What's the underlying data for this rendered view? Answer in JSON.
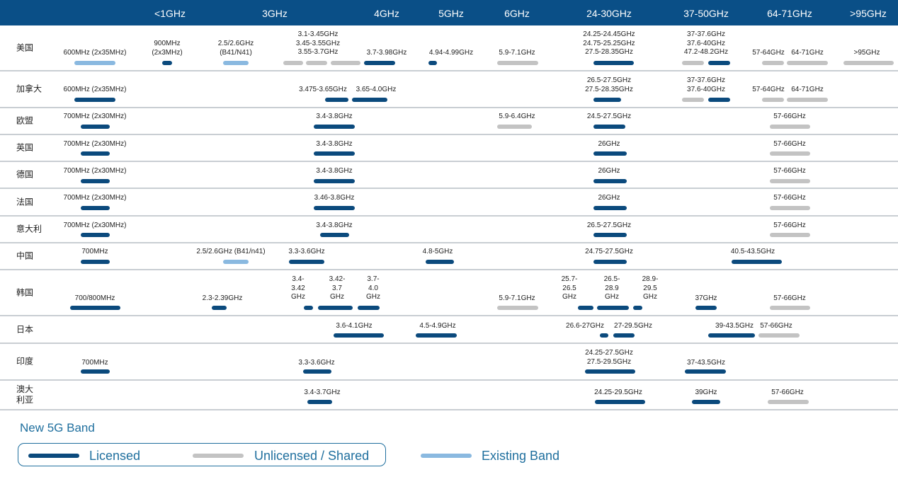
{
  "header": {
    "columns": [
      {
        "id": "lt1ghz",
        "label": "<1GHz"
      },
      {
        "id": "3ghz",
        "label": "3GHz"
      },
      {
        "id": "4ghz",
        "label": "4GHz"
      },
      {
        "id": "5ghz",
        "label": "5GHz"
      },
      {
        "id": "6ghz",
        "label": "6GHz"
      },
      {
        "id": "24-30ghz",
        "label": "24-30GHz"
      },
      {
        "id": "37-50ghz",
        "label": "37-50GHz"
      },
      {
        "id": "64-71ghz",
        "label": "64-71GHz"
      },
      {
        "id": "gt95ghz",
        "label": ">95GHz"
      }
    ]
  },
  "rows": [
    {
      "id": "usa",
      "country": "美国",
      "bands": [
        {
          "label": "600MHz (2x35MHz)",
          "type": "existing"
        },
        {
          "label": "900MHz\n(2x3MHz)",
          "type": "licensed"
        },
        {
          "label": "2.5/2.6GHz\n(B41/N41)",
          "type": "existing"
        },
        {
          "label": "3.1-3.45GHz\n3.45-3.55GHz\n3.55-3.7GHz",
          "type": "shared"
        },
        {
          "label": "3.7-3.98GHz",
          "type": "licensed"
        },
        {
          "label": "4.94-4.99GHz",
          "type": "licensed"
        },
        {
          "label": "5.9-7.1GHz",
          "type": "shared"
        },
        {
          "label": "24.25-24.45GHz\n24.75-25.25GHz\n27.5-28.35GHz",
          "type": "licensed"
        },
        {
          "label": "37-37.6GHz\n37.6-40GHz\n47.2-48.2GHz",
          "type": "mixed"
        },
        {
          "label": "57-64GHz",
          "type": "shared"
        },
        {
          "label": "64-71GHz",
          "type": "shared"
        },
        {
          "label": ">95GHz",
          "type": "shared"
        }
      ]
    },
    {
      "id": "canada",
      "country": "加拿大",
      "bands": [
        {
          "label": "600MHz (2x35MHz)",
          "type": "licensed"
        },
        {
          "label": "3.475-3.65GHz",
          "type": "licensed"
        },
        {
          "label": "3.65-4.0GHz",
          "type": "licensed"
        },
        {
          "label": "26.5-27.5GHz\n27.5-28.35GHz",
          "type": "licensed"
        },
        {
          "label": "37-37.6GHz\n37.6-40GHz",
          "type": "mixed"
        },
        {
          "label": "57-64GHz",
          "type": "shared"
        },
        {
          "label": "64-71GHz",
          "type": "shared"
        }
      ]
    },
    {
      "id": "eu",
      "country": "欧盟",
      "bands": [
        {
          "label": "700MHz (2x30MHz)",
          "type": "licensed"
        },
        {
          "label": "3.4-3.8GHz",
          "type": "licensed"
        },
        {
          "label": "5.9-6.4GHz",
          "type": "shared"
        },
        {
          "label": "24.5-27.5GHz",
          "type": "licensed"
        },
        {
          "label": "57-66GHz",
          "type": "shared"
        }
      ]
    },
    {
      "id": "uk",
      "country": "英国",
      "bands": [
        {
          "label": "700MHz (2x30MHz)",
          "type": "licensed"
        },
        {
          "label": "3.4-3.8GHz",
          "type": "licensed"
        },
        {
          "label": "26GHz",
          "type": "licensed"
        },
        {
          "label": "57-66GHz",
          "type": "shared"
        }
      ]
    },
    {
      "id": "germany",
      "country": "德国",
      "bands": [
        {
          "label": "700MHz (2x30MHz)",
          "type": "licensed"
        },
        {
          "label": "3.4-3.8GHz",
          "type": "licensed"
        },
        {
          "label": "26GHz",
          "type": "licensed"
        },
        {
          "label": "57-66GHz",
          "type": "shared"
        }
      ]
    },
    {
      "id": "france",
      "country": "法国",
      "bands": [
        {
          "label": "700MHz (2x30MHz)",
          "type": "licensed"
        },
        {
          "label": "3.46-3.8GHz",
          "type": "licensed"
        },
        {
          "label": "26GHz",
          "type": "licensed"
        },
        {
          "label": "57-66GHz",
          "type": "shared"
        }
      ]
    },
    {
      "id": "italy",
      "country": "意大利",
      "bands": [
        {
          "label": "700MHz (2x30MHz)",
          "type": "licensed"
        },
        {
          "label": "3.4-3.8GHz",
          "type": "licensed"
        },
        {
          "label": "26.5-27.5GHz",
          "type": "licensed"
        },
        {
          "label": "57-66GHz",
          "type": "shared"
        }
      ]
    },
    {
      "id": "china",
      "country": "中国",
      "bands": [
        {
          "label": "700MHz",
          "type": "licensed"
        },
        {
          "label": "2.5/2.6GHz (B41/n41)",
          "type": "existing"
        },
        {
          "label": "3.3-3.6GHz",
          "type": "licensed"
        },
        {
          "label": "4.8-5GHz",
          "type": "licensed"
        },
        {
          "label": "24.75-27.5GHz",
          "type": "licensed"
        },
        {
          "label": "40.5-43.5GHz",
          "type": "licensed"
        }
      ]
    },
    {
      "id": "korea",
      "country": "韩国",
      "bands": [
        {
          "label": "700/800MHz",
          "type": "licensed"
        },
        {
          "label": "2.3-2.39GHz",
          "type": "licensed"
        },
        {
          "label": "3.4-\n3.42\nGHz",
          "type": "licensed"
        },
        {
          "label": "3.42-\n3.7\nGHz",
          "type": "licensed"
        },
        {
          "label": "3.7-\n4.0\nGHz",
          "type": "licensed"
        },
        {
          "label": "5.9-7.1GHz",
          "type": "shared"
        },
        {
          "label": "25.7-\n26.5\nGHz",
          "type": "licensed"
        },
        {
          "label": "26.5-\n28.9\nGHz",
          "type": "licensed"
        },
        {
          "label": "28.9-\n29.5\nGHz",
          "type": "licensed"
        },
        {
          "label": "37GHz",
          "type": "licensed"
        },
        {
          "label": "57-66GHz",
          "type": "shared"
        }
      ]
    },
    {
      "id": "japan",
      "country": "日本",
      "bands": [
        {
          "label": "3.6-4.1GHz",
          "type": "licensed"
        },
        {
          "label": "4.5-4.9GHz",
          "type": "licensed"
        },
        {
          "label": "26.6-27GHz",
          "type": "licensed"
        },
        {
          "label": "27-29.5GHz",
          "type": "licensed"
        },
        {
          "label": "39-43.5GHz",
          "type": "licensed"
        },
        {
          "label": "57-66GHz",
          "type": "shared"
        }
      ]
    },
    {
      "id": "india",
      "country": "印度",
      "bands": [
        {
          "label": "700MHz",
          "type": "licensed"
        },
        {
          "label": "3.3-3.6GHz",
          "type": "licensed"
        },
        {
          "label": "24.25-27.5GHz\n27.5-29.5GHz",
          "type": "licensed"
        },
        {
          "label": "37-43.5GHz",
          "type": "licensed"
        }
      ]
    },
    {
      "id": "australia",
      "country": "澳大\n利亚",
      "bands": [
        {
          "label": "3.4-3.7GHz",
          "type": "licensed"
        },
        {
          "label": "24.25-29.5GHz",
          "type": "licensed"
        },
        {
          "label": "39GHz",
          "type": "licensed"
        },
        {
          "label": "57-66GHz",
          "type": "shared"
        }
      ]
    }
  ],
  "legend": {
    "title": "New 5G Band",
    "items": [
      {
        "type": "licensed",
        "label": "Licensed",
        "color": "#0b4a7d"
      },
      {
        "type": "shared",
        "label": "Unlicensed / Shared",
        "color": "#c3c3c3"
      },
      {
        "type": "existing",
        "label": "Existing Band",
        "color": "#8ab9e0"
      }
    ]
  },
  "colors": {
    "header_bg": "#0a4f87",
    "licensed": "#0b4a7d",
    "shared": "#c3c3c3",
    "existing": "#8ab9e0",
    "legend_accent": "#1f6f9e",
    "separator": "#c9ced3"
  }
}
